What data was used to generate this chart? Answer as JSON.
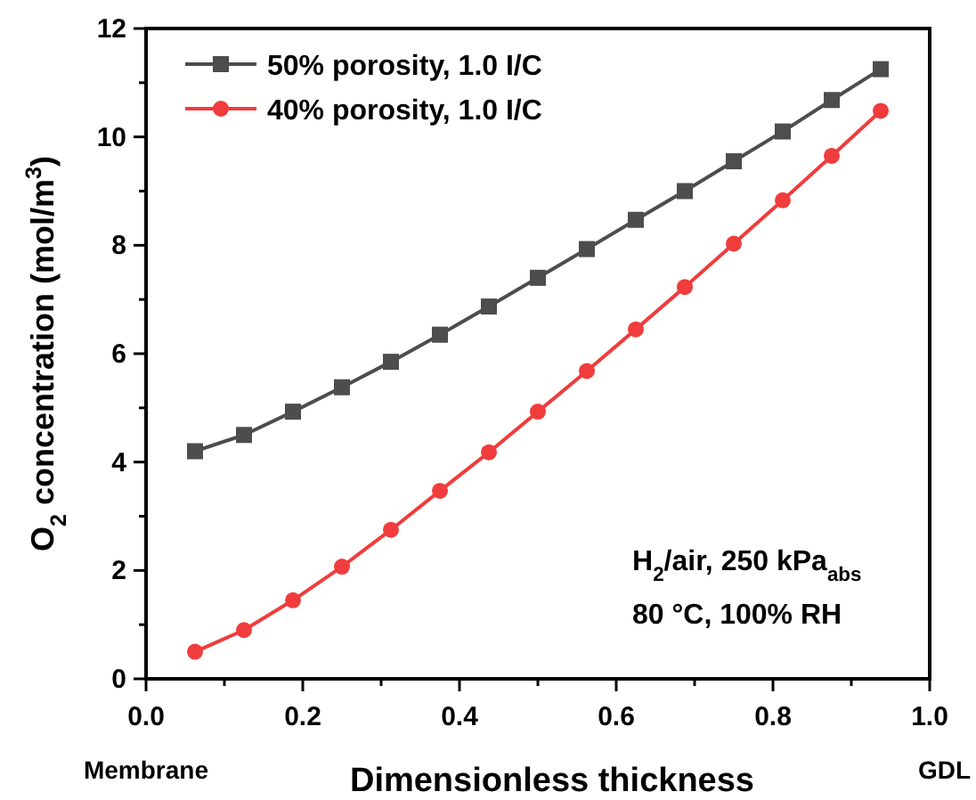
{
  "chart_data": {
    "type": "line",
    "xlabel": "Dimensionless thickness",
    "ylabel": "O$_{2}$ concentration (mol/m$^{3}$)",
    "x": [
      0.0625,
      0.125,
      0.1875,
      0.25,
      0.3125,
      0.375,
      0.4375,
      0.5,
      0.5625,
      0.625,
      0.6875,
      0.75,
      0.8125,
      0.875,
      0.9375
    ],
    "series": [
      {
        "name": "50% porosity, 1.0 I/C",
        "color": "#4d4d4d",
        "marker": "square",
        "values": [
          4.2,
          4.5,
          4.93,
          5.38,
          5.85,
          6.35,
          6.87,
          7.4,
          7.93,
          8.47,
          9.0,
          9.55,
          10.1,
          10.68,
          11.25
        ]
      },
      {
        "name": "40% porosity, 1.0 I/C",
        "color": "#f03c3c",
        "marker": "circle",
        "values": [
          0.5,
          0.9,
          1.45,
          2.07,
          2.75,
          3.47,
          4.18,
          4.93,
          5.68,
          6.45,
          7.23,
          8.03,
          8.83,
          9.65,
          10.48
        ]
      }
    ],
    "xlim": [
      0,
      1
    ],
    "xticks": [
      {
        "value": 0,
        "label": "0.0"
      },
      {
        "value": 0.1,
        "label": null
      },
      {
        "value": 0.2,
        "label": "0.2"
      },
      {
        "value": 0.3,
        "label": null
      },
      {
        "value": 0.4,
        "label": "0.4"
      },
      {
        "value": 0.5,
        "label": null
      },
      {
        "value": 0.6,
        "label": "0.6"
      },
      {
        "value": 0.7,
        "label": null
      },
      {
        "value": 0.8,
        "label": "0.8"
      },
      {
        "value": 0.9,
        "label": null
      },
      {
        "value": 1,
        "label": "1.0"
      }
    ],
    "ylim": [
      0,
      12
    ],
    "yticks": [
      0,
      {
        "value": 1,
        "label": null
      },
      2,
      {
        "value": 3,
        "label": null
      },
      4,
      {
        "value": 5,
        "label": null
      },
      6,
      {
        "value": 7,
        "label": null
      },
      8,
      {
        "value": 9,
        "label": null
      },
      10,
      {
        "value": 11,
        "label": null
      },
      12
    ],
    "legend": "top left",
    "grid": false,
    "line_style": "solid",
    "annotations": [
      {
        "text": "H$_{2}$/air, 250 kPa$_{abs}$"
      },
      {
        "text": "80 °C, 100% RH"
      },
      {
        "text": "Membrane"
      },
      {
        "text": "GDL"
      }
    ]
  }
}
